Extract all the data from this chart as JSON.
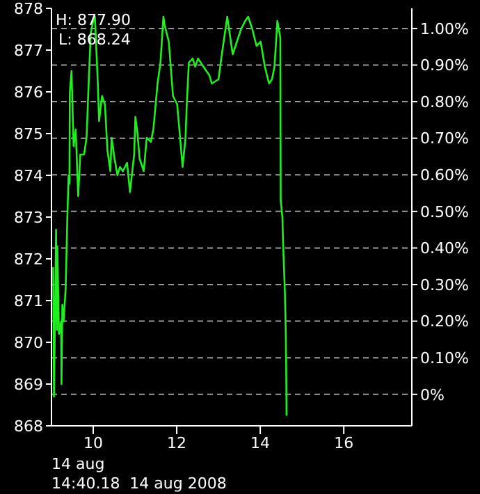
{
  "chart_data": {
    "type": "line",
    "xlabel": "14 aug",
    "annotations": [
      "H: 877.90",
      "L: 868.24",
      "14:40.18  14 aug 2008"
    ],
    "x": [
      9.04,
      9.06,
      9.11,
      9.13,
      9.14,
      9.18,
      9.23,
      9.24,
      9.26,
      9.29,
      9.34,
      9.38,
      9.41,
      9.43,
      9.44,
      9.48,
      9.53,
      9.58,
      9.64,
      9.69,
      9.78,
      9.84,
      9.89,
      9.94,
      10.0,
      10.04,
      10.11,
      10.14,
      10.21,
      10.28,
      10.34,
      10.41,
      10.44,
      10.51,
      10.58,
      10.64,
      10.71,
      10.81,
      10.88,
      10.98,
      11.01,
      11.06,
      11.11,
      11.21,
      11.28,
      11.38,
      11.44,
      11.54,
      11.61,
      11.68,
      11.71,
      11.81,
      11.91,
      12.01,
      12.08,
      12.14,
      12.21,
      12.24,
      12.29,
      12.38,
      12.44,
      12.51,
      12.64,
      12.78,
      12.84,
      13.0,
      13.08,
      13.21,
      13.34,
      13.44,
      13.54,
      13.64,
      13.71,
      13.81,
      13.91,
      14.01,
      14.11,
      14.21,
      14.28,
      14.34,
      14.41,
      14.48,
      14.49,
      14.53,
      14.55,
      14.59,
      14.61,
      14.62,
      14.63
    ],
    "series": [
      {
        "color": "#1ef01e",
        "values": [
          871.8,
          868.7,
          872.7,
          870.3,
          872.3,
          870.2,
          870.5,
          869.0,
          870.9,
          870.5,
          871.3,
          873.0,
          874.0,
          873.8,
          876.0,
          876.5,
          874.7,
          875.1,
          873.5,
          874.5,
          874.5,
          874.9,
          876.2,
          877.4,
          877.7,
          877.8,
          876.2,
          875.3,
          875.9,
          875.7,
          874.6,
          874.1,
          874.9,
          874.4,
          874.0,
          874.2,
          874.1,
          874.3,
          873.6,
          874.5,
          875.4,
          875.0,
          874.4,
          874.1,
          874.9,
          874.8,
          875.1,
          876.2,
          876.7,
          877.8,
          877.6,
          877.2,
          875.9,
          875.7,
          874.9,
          874.2,
          874.9,
          875.7,
          876.7,
          876.8,
          876.6,
          876.8,
          876.6,
          876.4,
          876.2,
          876.3,
          876.9,
          877.8,
          876.9,
          877.2,
          877.5,
          877.7,
          877.8,
          877.5,
          877.1,
          877.2,
          876.6,
          876.2,
          876.3,
          876.6,
          877.7,
          877.3,
          873.4,
          873.0,
          872.3,
          871.2,
          870.3,
          869.5,
          868.24
        ]
      }
    ],
    "xlim": [
      9,
      17.63
    ],
    "xticks": [
      10,
      12,
      14,
      16
    ],
    "ylim": [
      868,
      878
    ],
    "yticks": [
      868,
      869,
      870,
      871,
      872,
      873,
      874,
      875,
      876,
      877,
      878
    ],
    "y2lim": [
      -0.086,
      1.055
    ],
    "y2ticks": [
      {
        "value": 0,
        "label": "0%"
      },
      {
        "value": 0.1,
        "label": "0.10%"
      },
      {
        "value": 0.2,
        "label": "0.20%"
      },
      {
        "value": 0.3,
        "label": "0.30%"
      },
      {
        "value": 0.4,
        "label": "0.40%"
      },
      {
        "value": 0.5,
        "label": "0.50%"
      },
      {
        "value": 0.6,
        "label": "0.60%"
      },
      {
        "value": 0.7,
        "label": "0.70%"
      },
      {
        "value": 0.8,
        "label": "0.80%"
      },
      {
        "value": 0.9,
        "label": "0.90%"
      },
      {
        "value": 1,
        "label": "1.00%"
      }
    ],
    "grid": "y",
    "legend": false,
    "marker": "none",
    "line_style": "solid"
  }
}
